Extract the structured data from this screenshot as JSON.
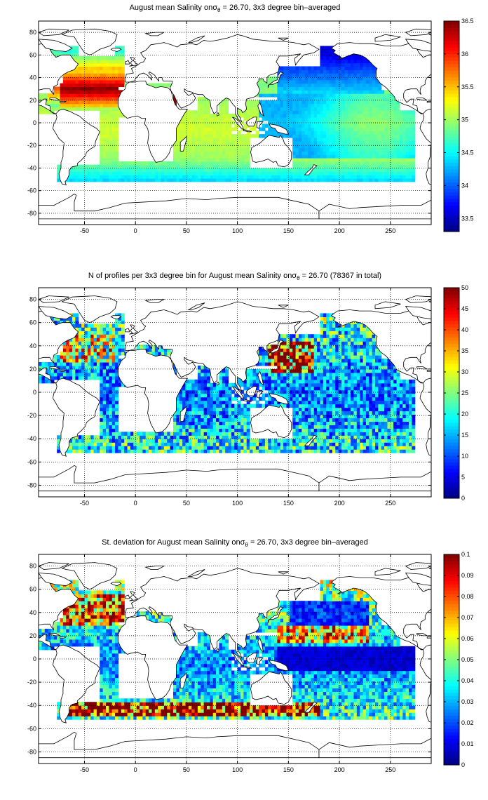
{
  "chart_data": [
    {
      "type": "heatmap",
      "title_pre": "August mean Salinity on",
      "title_sym": "σ",
      "title_sub": "θ",
      "title_post": " = 26.70, 3x3 degree bin–averaged",
      "xlim": [
        -95,
        290
      ],
      "ylim": [
        -90,
        90
      ],
      "xticks": [
        -50,
        0,
        50,
        100,
        150,
        200,
        250
      ],
      "yticks": [
        -80,
        -60,
        -40,
        -20,
        0,
        20,
        40,
        60,
        80
      ],
      "grid": true,
      "colormap": "jet",
      "clim": [
        33.3,
        36.5
      ],
      "colorbar_ticks": [
        33.5,
        34,
        34.5,
        35,
        35.5,
        36,
        36.5
      ],
      "field": "salinity"
    },
    {
      "type": "heatmap",
      "title_pre": "N of profiles per 3x3 degree bin for August mean Salinity on",
      "title_sym": "σ",
      "title_sub": "θ",
      "title_post": " = 26.70 (78367 in total)",
      "xlim": [
        -95,
        290
      ],
      "ylim": [
        -90,
        90
      ],
      "xticks": [
        -50,
        0,
        50,
        100,
        150,
        200,
        250
      ],
      "yticks": [
        -80,
        -60,
        -40,
        -20,
        0,
        20,
        40,
        60,
        80
      ],
      "grid": true,
      "colormap": "jet",
      "clim": [
        0,
        50
      ],
      "colorbar_ticks": [
        0,
        5,
        10,
        15,
        20,
        25,
        30,
        35,
        40,
        45,
        50
      ],
      "field": "count"
    },
    {
      "type": "heatmap",
      "title_pre": "St. deviation for August mean Salinity on",
      "title_sym": "σ",
      "title_sub": "θ",
      "title_post": " = 26.70, 3x3 degree bin–averaged",
      "xlim": [
        -95,
        290
      ],
      "ylim": [
        -90,
        90
      ],
      "xticks": [
        -50,
        0,
        50,
        100,
        150,
        200,
        250
      ],
      "yticks": [
        -80,
        -60,
        -40,
        -20,
        0,
        20,
        40,
        60,
        80
      ],
      "grid": true,
      "colormap": "jet",
      "clim": [
        0,
        0.1
      ],
      "colorbar_ticks": [
        0,
        0.01,
        0.02,
        0.03,
        0.04,
        0.05,
        0.06,
        0.07,
        0.08,
        0.09,
        0.1
      ],
      "field": "std"
    }
  ]
}
